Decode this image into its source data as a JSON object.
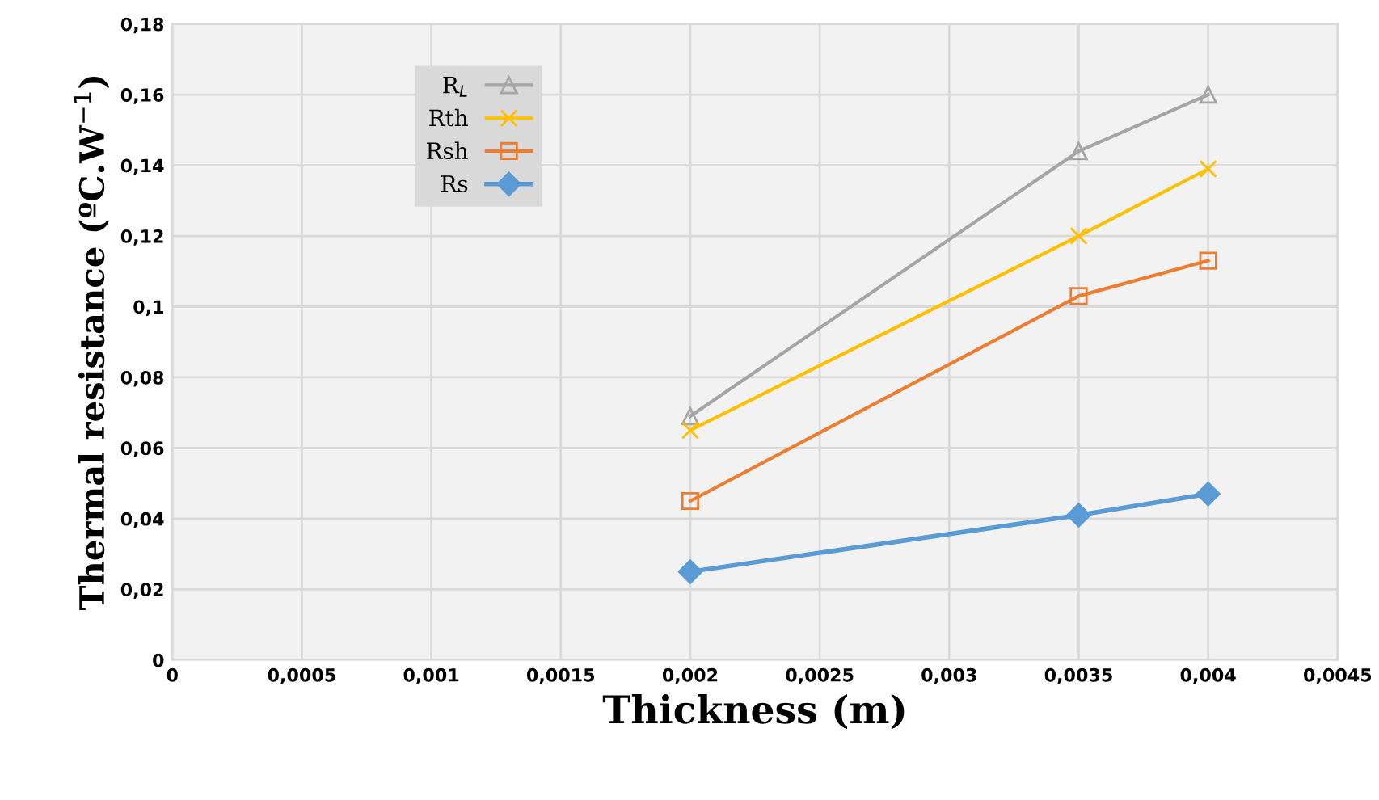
{
  "chart_data": {
    "type": "line",
    "xlabel": "Thickness (m)",
    "ylabel": "Thermal resistance (ºC.W$^{−1}$)",
    "x": [
      0.002,
      0.0035,
      0.004
    ],
    "series": [
      {
        "name": "R$_{L}$",
        "color": "#a5a5a5",
        "marker": "triangle",
        "values": [
          0.069,
          0.144,
          0.16
        ]
      },
      {
        "name": "Rth",
        "color": "#ffc000",
        "marker": "cross",
        "values": [
          0.065,
          0.12,
          0.139
        ]
      },
      {
        "name": "Rsh",
        "color": "#ed7d31",
        "marker": "square",
        "values": [
          0.045,
          0.103,
          0.113
        ]
      },
      {
        "name": "Rs",
        "color": "#5b9bd5",
        "marker": "diamond",
        "values": [
          0.025,
          0.041,
          0.047
        ]
      }
    ],
    "xlim": [
      0,
      0.0045
    ],
    "xticks": [
      0,
      {
        "value": 0.0005,
        "label": "0,0005"
      },
      {
        "value": 0.001,
        "label": "0,001"
      },
      {
        "value": 0.0015,
        "label": "0,0015"
      },
      {
        "value": 0.002,
        "label": "0,002"
      },
      {
        "value": 0.0025,
        "label": "0,0025"
      },
      {
        "value": 0.003,
        "label": "0,003"
      },
      {
        "value": 0.0035,
        "label": "0,0035"
      },
      {
        "value": 0.004,
        "label": "0,004"
      },
      {
        "value": 0.0045,
        "label": "0,0045"
      }
    ],
    "ylim": [
      0,
      0.18
    ],
    "yticks": [
      0,
      {
        "value": 0.02,
        "label": "0,02"
      },
      {
        "value": 0.04,
        "label": "0,04"
      },
      {
        "value": 0.06,
        "label": "0,06"
      },
      {
        "value": 0.08,
        "label": "0,08"
      },
      {
        "value": 0.1,
        "label": "0,1"
      },
      {
        "value": 0.12,
        "label": "0,12"
      },
      {
        "value": 0.14,
        "label": "0,14"
      },
      {
        "value": 0.16,
        "label": "0,16"
      },
      {
        "value": 0.18,
        "label": "0,18"
      }
    ],
    "grid": true,
    "legend": "top left"
  }
}
